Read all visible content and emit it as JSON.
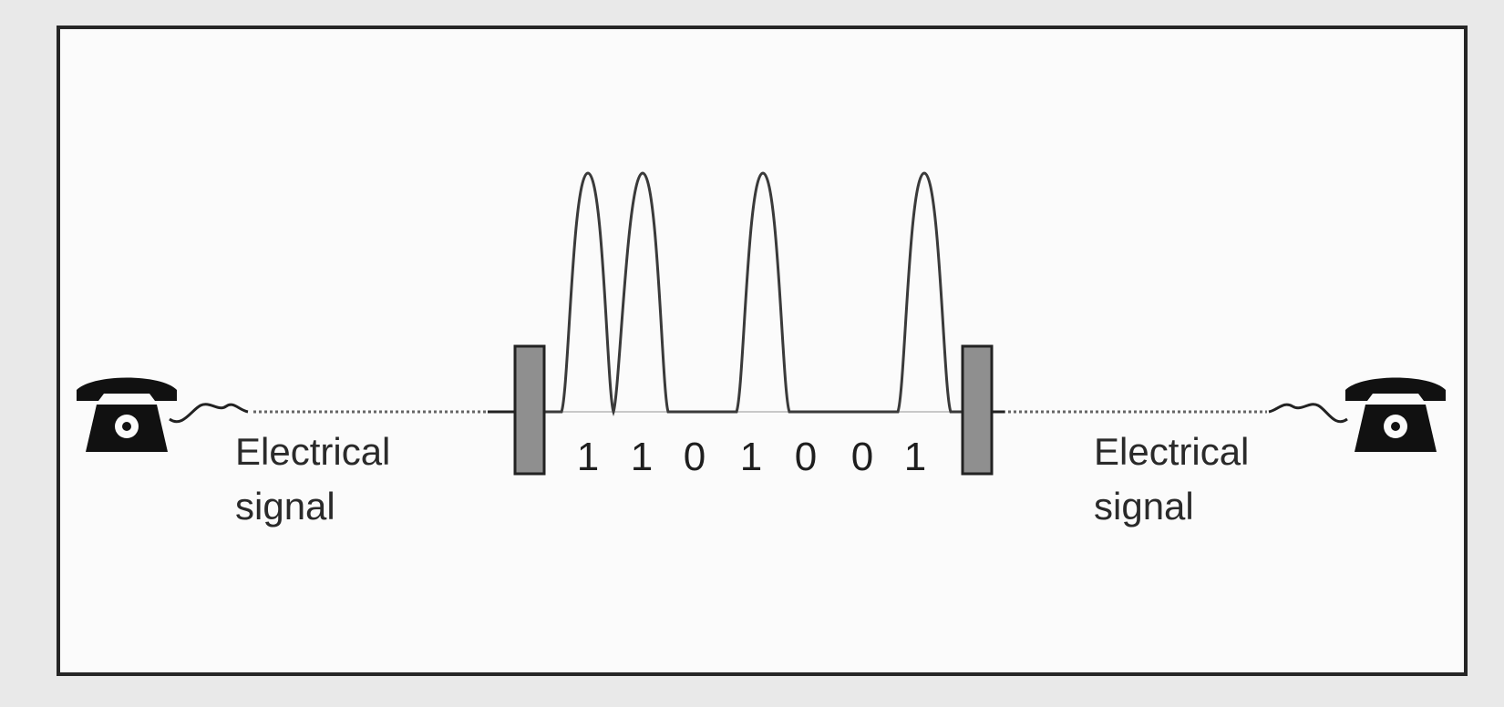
{
  "left_label": {
    "line1": "Electrical",
    "line2": "signal"
  },
  "right_label": {
    "line1": "Electrical",
    "line2": "signal"
  },
  "bits": [
    "1",
    "1",
    "0",
    "1",
    "0",
    "0",
    "1"
  ],
  "colors": {
    "background": "#e9e9e9",
    "panel": "#fbfbfb",
    "ink": "#262626",
    "fiber": "#8c8c8c",
    "connector": "#8f8f8f"
  },
  "icons": [
    "telephone-icon",
    "telephone-icon"
  ]
}
